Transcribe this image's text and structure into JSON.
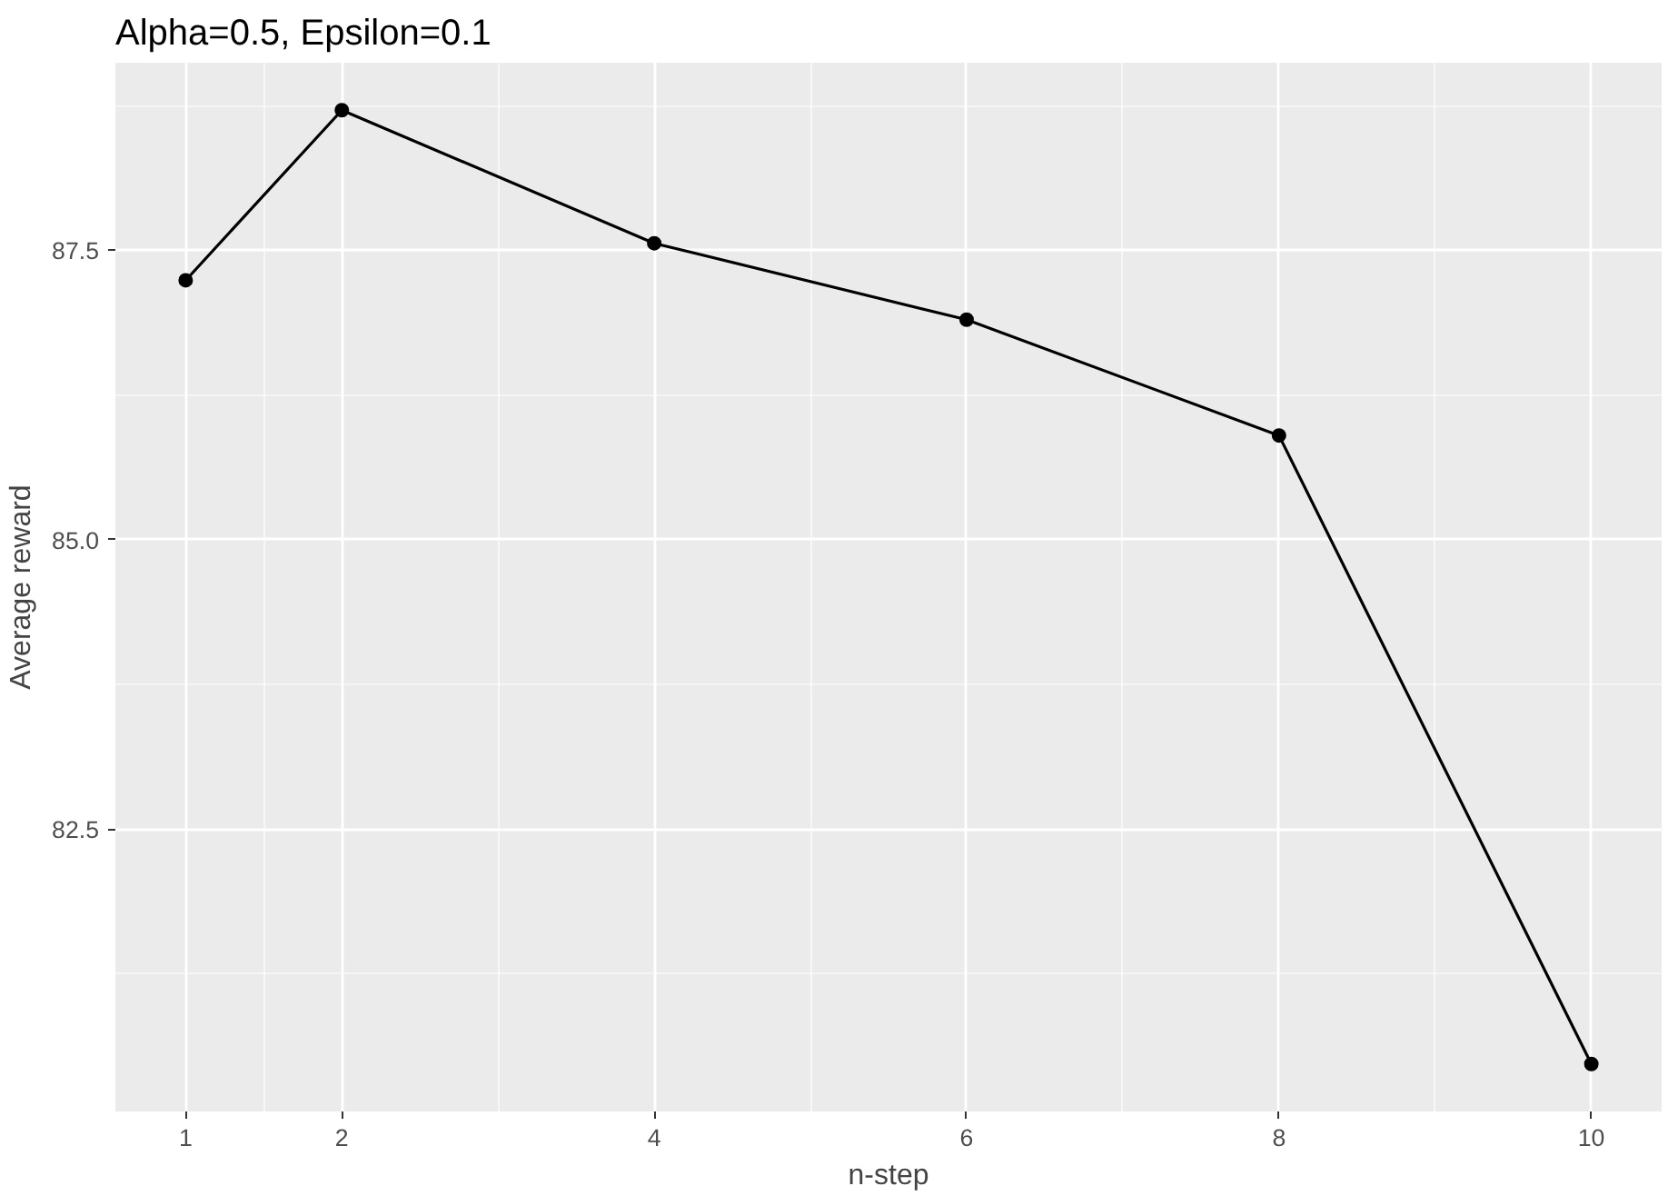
{
  "chart_data": {
    "type": "line",
    "title": "Alpha=0.5, Epsilon=0.1",
    "xlabel": "n-step",
    "ylabel": "Average reward",
    "x": [
      1,
      2,
      4,
      6,
      8,
      10
    ],
    "series": [
      {
        "color": "#000000",
        "values": [
          87.24,
          88.71,
          87.56,
          86.9,
          85.9,
          80.47
        ]
      }
    ],
    "xlim": [
      0.55,
      10.45
    ],
    "ylim": [
      80.06,
      89.12
    ],
    "xticks": [
      1,
      2,
      4,
      6,
      8,
      10
    ],
    "yticks": [
      {
        "value": 82.5,
        "label": "82.5"
      },
      {
        "value": 85,
        "label": "85.0"
      },
      {
        "value": 87.5,
        "label": "87.5"
      }
    ],
    "grid": true,
    "marker": "circle",
    "line_style": "solid"
  }
}
